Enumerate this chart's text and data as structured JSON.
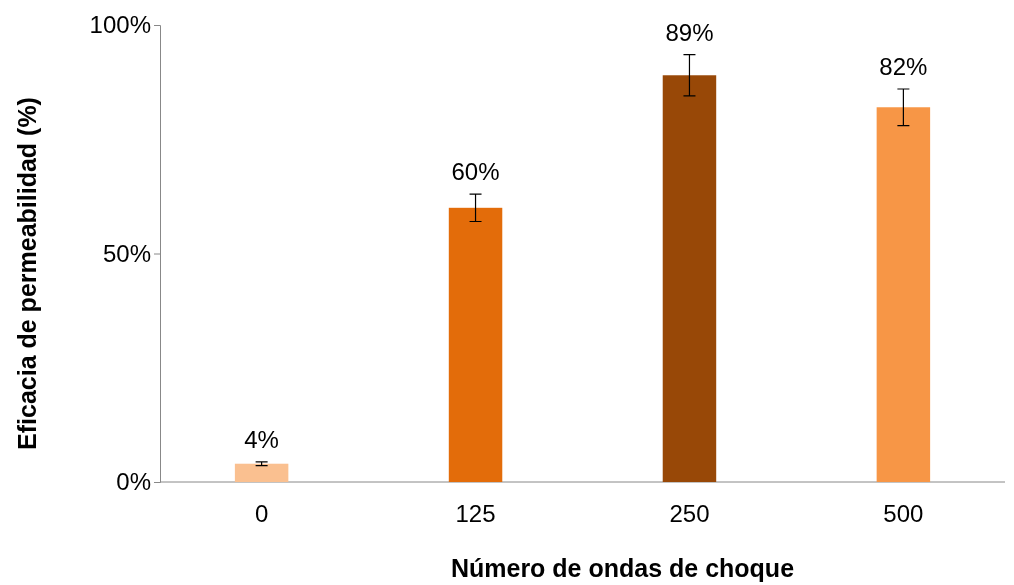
{
  "chart_data": {
    "type": "bar",
    "xlabel": "Número de ondas de choque",
    "ylabel": "Eficacia de permeabilidad (%)",
    "categories": [
      "0",
      "125",
      "250",
      "500"
    ],
    "values": [
      4,
      60,
      89,
      82
    ],
    "colors": [
      "#fac090",
      "#e36c0a",
      "#984807",
      "#f79646"
    ],
    "errors": [
      0.4,
      3,
      4.5,
      4
    ],
    "value_labels": [
      "4%",
      "60%",
      "89%",
      "82%"
    ],
    "ylim": [
      0,
      100
    ],
    "yticks": [
      {
        "value": 0,
        "label": "0%"
      },
      {
        "value": 50,
        "label": "50%"
      },
      {
        "value": 100,
        "label": "100%"
      }
    ]
  }
}
